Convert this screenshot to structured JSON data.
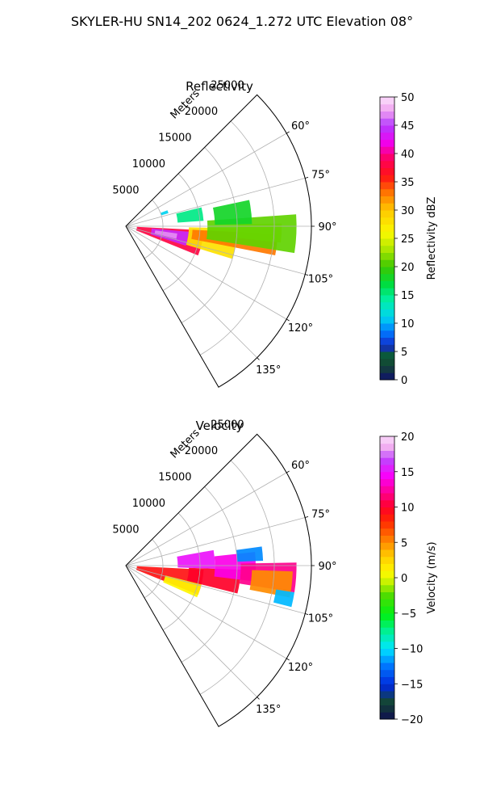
{
  "suptitle": "SKYLER-HU  SN14_202  0624_1.272 UTC Elevation 08°",
  "panels": [
    {
      "title": "Reflectivity",
      "range_label": "Meters",
      "range_ticks": [
        "5000",
        "10000",
        "15000",
        "20000",
        "25000"
      ],
      "azimuth_ticks": [
        "60°",
        "75°",
        "90°",
        "105°",
        "120°",
        "135°"
      ],
      "colorbar": {
        "label": "Reflectivity dBZ",
        "ticks": [
          "0",
          "5",
          "10",
          "15",
          "20",
          "25",
          "30",
          "35",
          "40",
          "45",
          "50"
        ]
      }
    },
    {
      "title": "Velocity",
      "range_label": "Meters",
      "range_ticks": [
        "5000",
        "10000",
        "15000",
        "20000",
        "25000"
      ],
      "azimuth_ticks": [
        "60°",
        "75°",
        "90°",
        "105°",
        "120°",
        "135°"
      ],
      "colorbar": {
        "label": "Velocity (m/s)",
        "ticks": [
          "−20",
          "−15",
          "−10",
          "−5",
          "0",
          "5",
          "10",
          "15",
          "20"
        ]
      }
    }
  ],
  "chart_data": [
    {
      "type": "heatmap",
      "projection": "polar-sector",
      "title": "Reflectivity",
      "field": "reflectivity",
      "azimuth_range_deg": [
        45,
        150
      ],
      "range_max_m": 25000,
      "range_ticks_m": [
        5000,
        10000,
        15000,
        20000,
        25000
      ],
      "azimuth_ticks_deg": [
        60,
        75,
        90,
        105,
        120,
        135
      ],
      "grid": true,
      "colorbar": {
        "label": "Reflectivity dBZ",
        "vmin": 0,
        "vmax": 50,
        "colormap": "pyart_HomeyerRainbow-like",
        "position": "right"
      },
      "echoes": [
        {
          "az_range": [
            93,
            112
          ],
          "range_m": [
            1500,
            10500
          ],
          "value": 38
        },
        {
          "az_range": [
            95,
            108
          ],
          "range_m": [
            3500,
            8500
          ],
          "value": 44
        },
        {
          "az_range": [
            98,
            104
          ],
          "range_m": [
            4000,
            7000
          ],
          "value": 47
        },
        {
          "az_range": [
            91,
            107
          ],
          "range_m": [
            8500,
            15000
          ],
          "value": 28
        },
        {
          "az_range": [
            93,
            101
          ],
          "range_m": [
            9000,
            20500
          ],
          "value": 33
        },
        {
          "az_range": [
            89,
            96
          ],
          "range_m": [
            15000,
            21000
          ],
          "value": 24
        },
        {
          "az_range": [
            86,
            99
          ],
          "range_m": [
            11000,
            23000
          ],
          "value": 21
        },
        {
          "az_range": [
            76,
            86
          ],
          "range_m": [
            7000,
            10500
          ],
          "value": 15
        },
        {
          "az_range": [
            78,
            89
          ],
          "range_m": [
            12000,
            17000
          ],
          "value": 18
        },
        {
          "az_range": [
            69,
            73
          ],
          "range_m": [
            5000,
            6000
          ],
          "value": 11
        }
      ]
    },
    {
      "type": "heatmap",
      "projection": "polar-sector",
      "title": "Velocity",
      "field": "velocity",
      "azimuth_range_deg": [
        45,
        150
      ],
      "range_max_m": 25000,
      "range_ticks_m": [
        5000,
        10000,
        15000,
        20000,
        25000
      ],
      "azimuth_ticks_deg": [
        60,
        75,
        90,
        105,
        120,
        135
      ],
      "grid": true,
      "colorbar": {
        "label": "Velocity (m/s)",
        "vmin": -20,
        "vmax": 20,
        "colormap": "pyart_BuDRd18-like",
        "position": "right"
      },
      "echoes": [
        {
          "az_range": [
            93,
            112
          ],
          "range_m": [
            1500,
            10500
          ],
          "value": 9
        },
        {
          "az_range": [
            104,
            114
          ],
          "range_m": [
            5500,
            10500
          ],
          "value": 1
        },
        {
          "az_range": [
            92,
            104
          ],
          "range_m": [
            8500,
            15500
          ],
          "value": 10
        },
        {
          "az_range": [
            80,
            92
          ],
          "range_m": [
            7000,
            12000
          ],
          "value": 15
        },
        {
          "az_range": [
            84,
            97
          ],
          "range_m": [
            12000,
            17500
          ],
          "value": 14
        },
        {
          "az_range": [
            89,
            99
          ],
          "range_m": [
            15500,
            23000
          ],
          "value": 12
        },
        {
          "az_range": [
            92,
            101
          ],
          "range_m": [
            17000,
            22500
          ],
          "value": 5
        },
        {
          "az_range": [
            82,
            88
          ],
          "range_m": [
            15000,
            18500
          ],
          "value": -12
        },
        {
          "az_range": [
            99,
            104
          ],
          "range_m": [
            20500,
            23000
          ],
          "value": -11
        }
      ]
    }
  ]
}
